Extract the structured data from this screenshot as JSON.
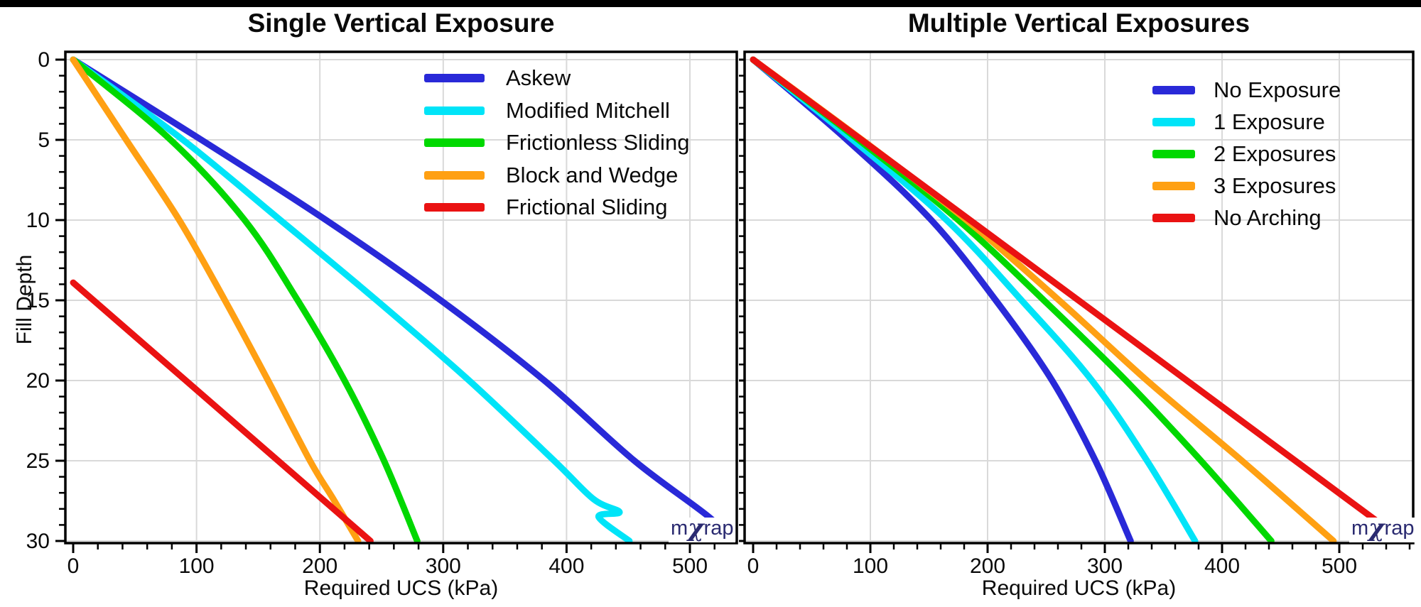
{
  "page": {
    "top_bar_color": "#000000",
    "background": "#ffffff",
    "grid_color": "#d9d9d9",
    "axis_color": "#000000"
  },
  "watermark": {
    "m": "m",
    "chi": "χ",
    "rap": "rap",
    "color": "#2a2a70"
  },
  "chart_data": [
    {
      "type": "line",
      "title": "Single Vertical Exposure",
      "xlabel": "Required UCS (kPa)",
      "ylabel": "Fill Depth",
      "x_ticks": [
        0,
        100,
        200,
        300,
        400,
        500
      ],
      "x_minor_step": 20,
      "x_max": 538,
      "y_ticks": [
        0,
        5,
        10,
        15,
        20,
        25,
        30
      ],
      "y_minor_step": 1,
      "y_max": 30,
      "show_y_tick_labels": true,
      "grid": true,
      "legend_position": "upper right inside",
      "series": [
        {
          "name": "Askew",
          "color": "#2929d8",
          "points": [
            [
              0,
              0
            ],
            [
              104,
              5
            ],
            [
              205,
              10
            ],
            [
              298,
              15
            ],
            [
              382,
              20
            ],
            [
              455,
              25
            ],
            [
              517,
              28.6
            ],
            [
              531,
              30
            ]
          ]
        },
        {
          "name": "Modified Mitchell",
          "color": "#00e4f8",
          "points": [
            [
              0,
              0
            ],
            [
              89,
              5
            ],
            [
              168,
              10
            ],
            [
              246,
              15
            ],
            [
              321,
              20
            ],
            [
              390,
              25
            ],
            [
              422,
              27.4
            ],
            [
              443,
              28.2
            ],
            [
              426,
              28.5
            ],
            [
              451,
              30
            ]
          ]
        },
        {
          "name": "Frictionless Sliding",
          "color": "#00d800",
          "points": [
            [
              0,
              0
            ],
            [
              79,
              5
            ],
            [
              139,
              10
            ],
            [
              182,
              15
            ],
            [
              220,
              20
            ],
            [
              252,
              25
            ],
            [
              279,
              30
            ]
          ]
        },
        {
          "name": "Block and Wedge",
          "color": "#ffa013",
          "points": [
            [
              0,
              0
            ],
            [
              43,
              5
            ],
            [
              86,
              10
            ],
            [
              123,
              15
            ],
            [
              158,
              20
            ],
            [
              192,
              25
            ],
            [
              211,
              27.4
            ],
            [
              231,
              30
            ]
          ]
        },
        {
          "name": "Frictional Sliding",
          "color": "#ea1212",
          "points": [
            [
              0,
              13.9
            ],
            [
              241,
              30
            ]
          ]
        }
      ]
    },
    {
      "type": "line",
      "title": "Multiple Vertical Exposures",
      "xlabel": "Required UCS (kPa)",
      "ylabel": "",
      "x_ticks": [
        0,
        100,
        200,
        300,
        400,
        500
      ],
      "x_minor_step": 20,
      "x_max": 563,
      "y_ticks": [
        0,
        5,
        10,
        15,
        20,
        25,
        30
      ],
      "y_minor_step": 1,
      "y_max": 30,
      "show_y_tick_labels": false,
      "grid": true,
      "legend_position": "upper right inside",
      "series": [
        {
          "name": "No Exposure",
          "color": "#2929d8",
          "points": [
            [
              0,
              0
            ],
            [
              80,
              5
            ],
            [
              152,
              10
            ],
            [
              207,
              15
            ],
            [
              255,
              20
            ],
            [
              292,
              25
            ],
            [
              322,
              30
            ]
          ]
        },
        {
          "name": "1 Exposure",
          "color": "#00e4f8",
          "points": [
            [
              0,
              0
            ],
            [
              85,
              5
            ],
            [
              165,
              10
            ],
            [
              229,
              15
            ],
            [
              289,
              20
            ],
            [
              336,
              25
            ],
            [
              377,
              30
            ]
          ]
        },
        {
          "name": "2 Exposures",
          "color": "#00d800",
          "points": [
            [
              0,
              0
            ],
            [
              90,
              5
            ],
            [
              175,
              10
            ],
            [
              248,
              15
            ],
            [
              318,
              20
            ],
            [
              382,
              25
            ],
            [
              442,
              30
            ]
          ]
        },
        {
          "name": "3 Exposures",
          "color": "#ffa013",
          "points": [
            [
              0,
              0
            ],
            [
              93,
              5
            ],
            [
              182,
              10
            ],
            [
              261,
              15
            ],
            [
              336,
              20
            ],
            [
              417,
              25
            ],
            [
              495,
              30
            ]
          ]
        },
        {
          "name": "No Arching",
          "color": "#ea1212",
          "points": [
            [
              0,
              0
            ],
            [
              555,
              30
            ]
          ]
        }
      ]
    }
  ]
}
